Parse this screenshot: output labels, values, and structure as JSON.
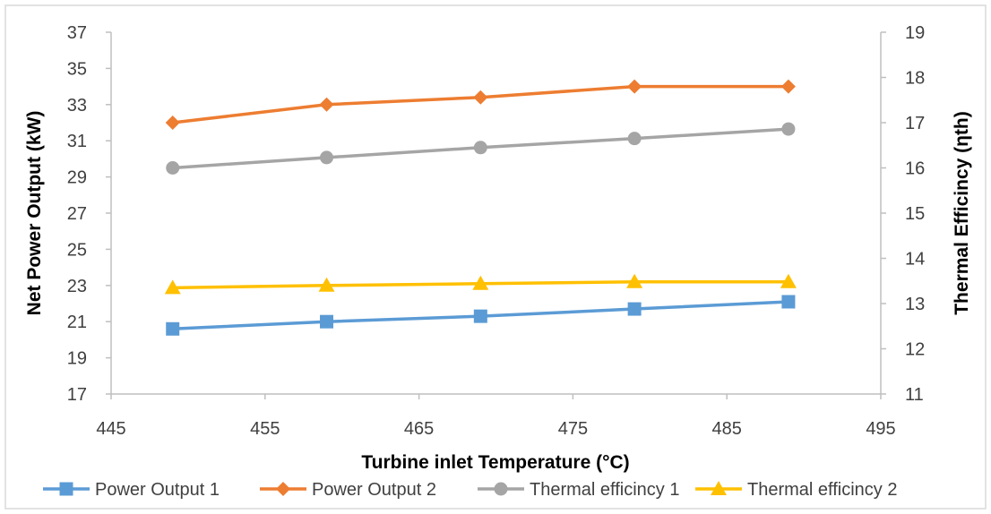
{
  "chart_data": {
    "type": "line",
    "title": "",
    "xlabel": "Turbine inlet Temperature (°C)",
    "ylabel": "Net Power Output (kW)",
    "y2label": "Thermal Efficincy (ηth)",
    "xlim": [
      445,
      495
    ],
    "ylim": [
      17,
      37
    ],
    "y2lim": [
      11,
      19
    ],
    "x_ticks": [
      "445",
      "455",
      "465",
      "475",
      "485",
      "495"
    ],
    "y_ticks": [
      "17",
      "19",
      "21",
      "23",
      "25",
      "27",
      "29",
      "31",
      "33",
      "35",
      "37"
    ],
    "y2_ticks": [
      "11",
      "12",
      "13",
      "14",
      "15",
      "16",
      "17",
      "18",
      "19"
    ],
    "x": [
      449,
      459,
      469,
      479,
      489
    ],
    "grid": false,
    "legend_position": "bottom",
    "series": [
      {
        "name": "Power Output 1",
        "axis": "left",
        "marker": "square",
        "color": "#5B9BD5",
        "values": [
          20.6,
          21.0,
          21.3,
          21.7,
          22.1
        ]
      },
      {
        "name": "Power Output 2",
        "axis": "left",
        "marker": "diamond",
        "color": "#ED7D31",
        "values": [
          32.0,
          33.0,
          33.4,
          34.0,
          34.0
        ]
      },
      {
        "name": "Thermal efficincy 1",
        "axis": "right",
        "marker": "circle",
        "color": "#A5A5A5",
        "values": [
          16.0,
          16.23,
          16.45,
          16.65,
          16.86
        ]
      },
      {
        "name": "Thermal efficincy 2",
        "axis": "right",
        "marker": "triangle",
        "color": "#FFC000",
        "values": [
          13.35,
          13.4,
          13.44,
          13.48,
          13.48
        ]
      }
    ]
  }
}
